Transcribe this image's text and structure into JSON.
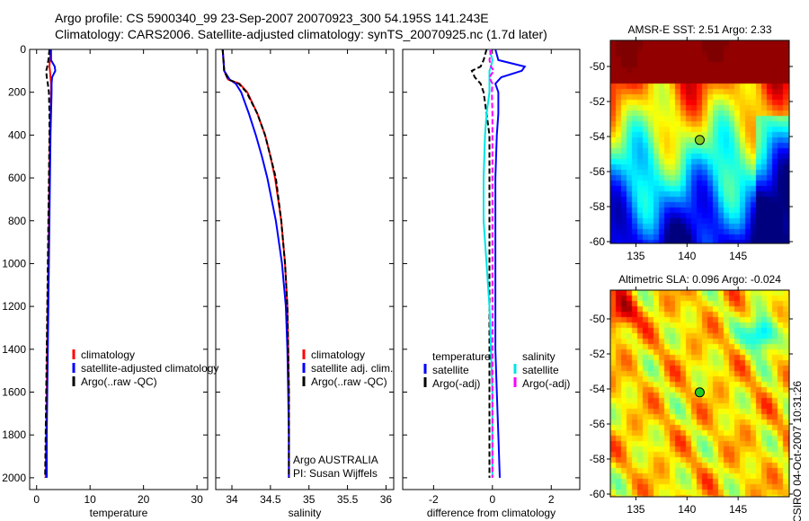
{
  "title": {
    "line1": "Argo profile: CS 5900340_99 23-Sep-2007 20070923_300 54.195S 141.243E",
    "line2": "Climatology: CARS2006. Satellite-adjusted climatology: synTS_20070925.nc (1.7d later)"
  },
  "colors": {
    "climatology": "#ff0000",
    "satellite": "#0000ff",
    "argo": "#000000",
    "sal_satellite": "#00e5e5",
    "sal_argo": "#ff00ff"
  },
  "chart_data": [
    {
      "type": "line",
      "xlabel": "temperature",
      "ylabel": "",
      "xlim": [
        -1.3,
        32
      ],
      "ylim": [
        2055,
        0
      ],
      "xticks": [
        "0",
        "10",
        "20",
        "30"
      ],
      "xtick_values": [
        0,
        10,
        20,
        30
      ],
      "yticks": [
        "0",
        "200",
        "400",
        "600",
        "800",
        "1000",
        "1200",
        "1400",
        "1600",
        "1800",
        "2000"
      ],
      "ytick_values": [
        0,
        200,
        400,
        600,
        800,
        1000,
        1200,
        1400,
        1600,
        1800,
        2000
      ],
      "legend": [
        "climatology",
        "satellite-adjusted climatology",
        "Argo(..raw -QC)"
      ],
      "depth": [
        0,
        50,
        80,
        100,
        130,
        160,
        200,
        300,
        400,
        600,
        800,
        1000,
        1200,
        1400,
        1600,
        1800,
        2000
      ],
      "series": [
        {
          "name": "climatology",
          "values": [
            2.6,
            2.5,
            2.4,
            2.5,
            2.6,
            2.7,
            2.7,
            2.6,
            2.5,
            2.4,
            2.3,
            2.2,
            2.1,
            2.0,
            1.9,
            1.8,
            1.7
          ]
        },
        {
          "name": "satellite-adjusted climatology",
          "values": [
            2.7,
            2.7,
            3.4,
            3.5,
            2.9,
            2.8,
            2.8,
            2.7,
            2.6,
            2.5,
            2.4,
            2.3,
            2.2,
            2.1,
            2.0,
            1.9,
            1.9
          ]
        },
        {
          "name": "Argo(..raw -QC)",
          "values": [
            2.4,
            2.2,
            2.0,
            1.8,
            1.9,
            2.1,
            2.3,
            2.4,
            2.4,
            2.3,
            2.2,
            2.1,
            2.0,
            1.9,
            1.8,
            1.7,
            1.6
          ]
        }
      ]
    },
    {
      "type": "line",
      "xlabel": "salinity",
      "xlim": [
        33.79,
        36.1
      ],
      "ylim": [
        2055,
        0
      ],
      "xticks": [
        "34",
        "34.5",
        "35",
        "35.5",
        "36"
      ],
      "xtick_values": [
        34,
        34.5,
        35,
        35.5,
        36
      ],
      "legend": [
        "climatology",
        "satellite adj. clim.",
        "Argo(..raw -QC)"
      ],
      "annotation": [
        "Argo AUSTRALIA",
        "PI: Susan Wijffels"
      ],
      "depth": [
        0,
        50,
        100,
        140,
        160,
        200,
        300,
        400,
        500,
        600,
        800,
        1000,
        1200,
        1400,
        1600,
        1800,
        2000
      ],
      "series": [
        {
          "name": "climatology",
          "values": [
            33.88,
            33.89,
            33.9,
            33.95,
            34.1,
            34.2,
            34.33,
            34.43,
            34.5,
            34.56,
            34.64,
            34.69,
            34.72,
            34.73,
            34.74,
            34.74,
            34.74
          ]
        },
        {
          "name": "satellite adj. clim.",
          "values": [
            33.88,
            33.89,
            33.9,
            33.97,
            34.05,
            34.12,
            34.22,
            34.31,
            34.39,
            34.46,
            34.57,
            34.65,
            34.7,
            34.72,
            34.73,
            34.74,
            34.74
          ]
        },
        {
          "name": "Argo(..raw -QC)",
          "values": [
            33.88,
            33.89,
            33.9,
            33.95,
            34.09,
            34.19,
            34.33,
            34.43,
            34.5,
            34.57,
            34.64,
            34.69,
            34.72,
            34.73,
            34.74,
            34.74,
            34.74
          ]
        }
      ]
    },
    {
      "type": "line",
      "xlabel": "difference from climatology",
      "xlim": [
        -3.05,
        2.97
      ],
      "ylim": [
        2055,
        0
      ],
      "xticks": [
        "-2",
        "0",
        "2"
      ],
      "xtick_values": [
        -2,
        0,
        2
      ],
      "legend_groups": [
        {
          "title": "temperature",
          "items": [
            "satellite",
            "Argo(-adj)"
          ]
        },
        {
          "title": "salinity",
          "items": [
            "satellite",
            "Argo(-adj)"
          ]
        }
      ],
      "depth": [
        0,
        50,
        80,
        100,
        130,
        160,
        200,
        300,
        400,
        600,
        800,
        1000,
        1200,
        1400,
        1600,
        1800,
        2000
      ],
      "series": [
        {
          "name": "temperature satellite",
          "values": [
            0.1,
            0.2,
            1.1,
            1.0,
            0.3,
            0.1,
            0.2,
            0.2,
            0.15,
            0.1,
            0.1,
            0.1,
            0.1,
            0.1,
            0.15,
            0.2,
            0.25
          ]
        },
        {
          "name": "temperature Argo(-adj)",
          "values": [
            -0.2,
            -0.3,
            -0.4,
            -0.7,
            -0.6,
            -0.4,
            -0.3,
            -0.2,
            -0.1,
            -0.1,
            -0.1,
            -0.1,
            -0.1,
            -0.1,
            -0.1,
            -0.1,
            -0.1
          ]
        },
        {
          "name": "salinity satellite",
          "values": [
            -0.1,
            0,
            -0.05,
            -0.1,
            -0.1,
            -0.1,
            -0.1,
            -0.2,
            -0.25,
            -0.3,
            -0.3,
            -0.2,
            -0.1,
            -0.05,
            0,
            0,
            0
          ]
        },
        {
          "name": "salinity Argo(-adj)",
          "values": [
            -0.05,
            -0.1,
            -0.05,
            0.05,
            -0.1,
            0,
            -0.02,
            0,
            0,
            0,
            0,
            0,
            0,
            0,
            0,
            0,
            0
          ]
        }
      ]
    }
  ],
  "maps": [
    {
      "title": "AMSR-E SST: 2.51 Argo: 2.33",
      "xticks": [
        "135",
        "140",
        "145"
      ],
      "yticks": [
        "-50",
        "-52",
        "-54",
        "-56",
        "-58",
        "-60"
      ]
    },
    {
      "title": "Altimetric SLA: 0.096 Argo: -0.024",
      "xticks": [
        "135",
        "140",
        "145"
      ],
      "yticks": [
        "-50",
        "-52",
        "-54",
        "-56",
        "-58",
        "-60"
      ],
      "credit": "CSIRO 04-Oct-2007 10:31:26"
    }
  ],
  "argo_position": {
    "lon": 141.243,
    "lat": -54.195
  }
}
